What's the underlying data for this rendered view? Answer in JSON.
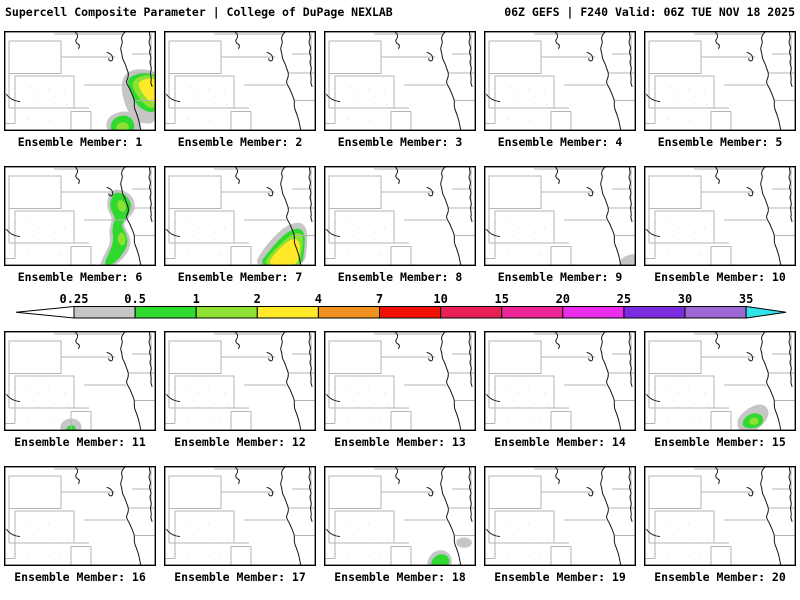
{
  "header": {
    "left": "Supercell Composite Parameter | College of DuPage NEXLAB",
    "right": "06Z GEFS | F240 Valid: 06Z TUE NOV 18 2025"
  },
  "chart_data": {
    "type": "heatmap",
    "title": "Supercell Composite Parameter",
    "source": "College of DuPage NEXLAB",
    "model": "GEFS",
    "run": "06Z",
    "forecast_hour": "F240",
    "valid": "06Z TUE NOV 18 2025",
    "region": "Central Plains / Upper Midwest (NE, IA, SD, MN, KS, MO, CO, WY)",
    "levels": [
      0.25,
      0.5,
      1,
      2,
      4,
      7,
      10,
      15,
      20,
      25,
      30,
      35
    ],
    "colorbar": {
      "tick_labels": [
        "0.25",
        "0.5",
        "1",
        "2",
        "4",
        "7",
        "10",
        "15",
        "20",
        "25",
        "30",
        "35"
      ],
      "segment_colors": [
        "#c6c6c6",
        "#2fd92f",
        "#8ee032",
        "#ffe929",
        "#f0921f",
        "#f00f05",
        "#e92055",
        "#ed2596",
        "#eb2ceb",
        "#7b2cdf",
        "#9d67d4"
      ],
      "below_min_color": "#ffffff",
      "above_max_color": "#2fe3e9"
    },
    "level_fill": {
      "0.25": "#c6c6c6",
      "0.5": "#2fd92f",
      "1": "#8ee032",
      "2": "#ffe929"
    },
    "panels": [
      {
        "member": 1,
        "caption": "Ensemble Member: 1",
        "max_band": "2-4",
        "blobs": [
          {
            "level": "0.25",
            "points": [
              [
                121,
                44
              ],
              [
                132,
                39
              ],
              [
                144,
                40
              ],
              [
                152,
                42
              ],
              [
                152,
                90
              ],
              [
                142,
                92
              ],
              [
                130,
                88
              ],
              [
                123,
                76
              ],
              [
                118,
                58
              ]
            ]
          },
          {
            "level": "0.5",
            "points": [
              [
                126,
                47
              ],
              [
                137,
                43
              ],
              [
                147,
                44
              ],
              [
                152,
                46
              ],
              [
                152,
                80
              ],
              [
                144,
                80
              ],
              [
                134,
                74
              ],
              [
                128,
                62
              ],
              [
                125,
                52
              ]
            ]
          },
          {
            "level": "1",
            "points": [
              [
                131,
                49
              ],
              [
                141,
                45
              ],
              [
                150,
                46
              ],
              [
                152,
                48
              ],
              [
                152,
                76
              ],
              [
                145,
                76
              ],
              [
                137,
                68
              ],
              [
                129,
                56
              ]
            ]
          },
          {
            "level": "2",
            "points": [
              [
                136,
                51
              ],
              [
                146,
                48
              ],
              [
                152,
                50
              ],
              [
                152,
                70
              ],
              [
                145,
                69
              ],
              [
                139,
                61
              ],
              [
                136,
                55
              ]
            ]
          },
          {
            "level": "0.25",
            "points": [
              [
                104,
                87
              ],
              [
                118,
                81
              ],
              [
                131,
                83
              ],
              [
                136,
                90
              ],
              [
                135,
                101
              ],
              [
                103,
                101
              ]
            ]
          },
          {
            "level": "0.5",
            "points": [
              [
                109,
                89
              ],
              [
                119,
                85
              ],
              [
                128,
                88
              ],
              [
                130,
                101
              ],
              [
                107,
                101
              ]
            ]
          },
          {
            "level": "1",
            "points": [
              [
                114,
                93
              ],
              [
                123,
                92
              ],
              [
                124,
                100
              ],
              [
                113,
                100
              ]
            ]
          }
        ]
      },
      {
        "member": 2,
        "caption": "Ensemble Member: 2",
        "max_band": "<0.25",
        "blobs": []
      },
      {
        "member": 3,
        "caption": "Ensemble Member: 3",
        "max_band": "<0.25",
        "blobs": []
      },
      {
        "member": 4,
        "caption": "Ensemble Member: 4",
        "max_band": "<0.25",
        "blobs": []
      },
      {
        "member": 5,
        "caption": "Ensemble Member: 5",
        "max_band": "<0.25",
        "blobs": []
      },
      {
        "member": 6,
        "caption": "Ensemble Member: 6",
        "max_band": "1-2",
        "blobs": [
          {
            "level": "0.25",
            "points": [
              [
                110,
                24
              ],
              [
                121,
                26
              ],
              [
                129,
                33
              ],
              [
                130,
                44
              ],
              [
                123,
                52
              ],
              [
                118,
                58
              ],
              [
                122,
                66
              ],
              [
                126,
                74
              ],
              [
                124,
                84
              ],
              [
                116,
                94
              ],
              [
                106,
                101
              ],
              [
                96,
                101
              ],
              [
                102,
                88
              ],
              [
                108,
                76
              ],
              [
                106,
                64
              ],
              [
                110,
                52
              ],
              [
                104,
                42
              ],
              [
                105,
                31
              ]
            ]
          },
          {
            "level": "0.5",
            "points": [
              [
                112,
                27
              ],
              [
                121,
                30
              ],
              [
                126,
                37
              ],
              [
                125,
                46
              ],
              [
                119,
                54
              ],
              [
                116,
                60
              ],
              [
                121,
                68
              ],
              [
                123,
                78
              ],
              [
                116,
                90
              ],
              [
                107,
                98
              ],
              [
                101,
                98
              ],
              [
                107,
                86
              ],
              [
                111,
                74
              ],
              [
                109,
                62
              ],
              [
                113,
                52
              ],
              [
                107,
                42
              ],
              [
                108,
                33
              ]
            ]
          },
          {
            "level": "1",
            "points": [
              [
                115,
                34
              ],
              [
                121,
                38
              ],
              [
                120,
                46
              ],
              [
                114,
                42
              ]
            ]
          },
          {
            "level": "1",
            "points": [
              [
                117,
                66
              ],
              [
                121,
                72
              ],
              [
                119,
                80
              ],
              [
                114,
                74
              ]
            ]
          }
        ]
      },
      {
        "member": 7,
        "caption": "Ensemble Member: 7",
        "max_band": "2-4",
        "blobs": [
          {
            "level": "0.25",
            "points": [
              [
                90,
                101
              ],
              [
                100,
                84
              ],
              [
                112,
                70
              ],
              [
                124,
                60
              ],
              [
                136,
                57
              ],
              [
                142,
                63
              ],
              [
                142,
                80
              ],
              [
                139,
                101
              ]
            ]
          },
          {
            "level": "0.5",
            "points": [
              [
                95,
                100
              ],
              [
                106,
                86
              ],
              [
                116,
                74
              ],
              [
                127,
                65
              ],
              [
                136,
                63
              ],
              [
                140,
                70
              ],
              [
                139,
                84
              ],
              [
                137,
                100
              ]
            ]
          },
          {
            "level": "1",
            "points": [
              [
                99,
                100
              ],
              [
                109,
                87
              ],
              [
                119,
                77
              ],
              [
                129,
                69
              ],
              [
                137,
                68
              ],
              [
                138,
                76
              ],
              [
                136,
                88
              ],
              [
                134,
                100
              ]
            ]
          },
          {
            "level": "2",
            "points": [
              [
                104,
                99
              ],
              [
                112,
                88
              ],
              [
                122,
                78
              ],
              [
                131,
                73
              ],
              [
                135,
                78
              ],
              [
                134,
                90
              ],
              [
                131,
                99
              ]
            ]
          }
        ]
      },
      {
        "member": 8,
        "caption": "Ensemble Member: 8",
        "max_band": "<0.25",
        "blobs": []
      },
      {
        "member": 9,
        "caption": "Ensemble Member: 9",
        "max_band": "0.25-0.5",
        "blobs": [
          {
            "level": "0.25",
            "points": [
              [
                138,
                93
              ],
              [
                145,
                90
              ],
              [
                152,
                89
              ],
              [
                152,
                101
              ],
              [
                136,
                101
              ]
            ]
          }
        ]
      },
      {
        "member": 10,
        "caption": "Ensemble Member: 10",
        "max_band": "<0.25",
        "blobs": []
      },
      {
        "member": 11,
        "caption": "Ensemble Member: 11",
        "max_band": "0.5-1",
        "blobs": [
          {
            "level": "0.25",
            "points": [
              [
                58,
                92
              ],
              [
                66,
                88
              ],
              [
                74,
                90
              ],
              [
                77,
                96
              ],
              [
                74,
                101
              ],
              [
                57,
                101
              ]
            ]
          },
          {
            "level": "0.5",
            "points": [
              [
                64,
                96
              ],
              [
                70,
                95
              ],
              [
                71,
                101
              ],
              [
                63,
                101
              ]
            ]
          }
        ]
      },
      {
        "member": 12,
        "caption": "Ensemble Member: 12",
        "max_band": "<0.25",
        "blobs": []
      },
      {
        "member": 13,
        "caption": "Ensemble Member: 13",
        "max_band": "<0.25",
        "blobs": []
      },
      {
        "member": 14,
        "caption": "Ensemble Member: 14",
        "max_band": "<0.25",
        "blobs": []
      },
      {
        "member": 15,
        "caption": "Ensemble Member: 15",
        "max_band": "1-2",
        "blobs": [
          {
            "level": "0.25",
            "points": [
              [
                94,
                88
              ],
              [
                104,
                79
              ],
              [
                114,
                74
              ],
              [
                122,
                76
              ],
              [
                124,
                84
              ],
              [
                118,
                93
              ],
              [
                110,
                99
              ],
              [
                95,
                99
              ]
            ]
          },
          {
            "level": "0.5",
            "points": [
              [
                100,
                89
              ],
              [
                108,
                83
              ],
              [
                116,
                84
              ],
              [
                119,
                90
              ],
              [
                113,
                96
              ],
              [
                100,
                96
              ]
            ]
          },
          {
            "level": "1",
            "points": [
              [
                106,
                89
              ],
              [
                112,
                87
              ],
              [
                114,
                92
              ],
              [
                107,
                93
              ]
            ]
          }
        ]
      },
      {
        "member": 16,
        "caption": "Ensemble Member: 16",
        "max_band": "<0.25",
        "blobs": []
      },
      {
        "member": 17,
        "caption": "Ensemble Member: 17",
        "max_band": "<0.25",
        "blobs": []
      },
      {
        "member": 18,
        "caption": "Ensemble Member: 18",
        "max_band": "0.5-1",
        "blobs": [
          {
            "level": "0.25",
            "points": [
              [
                133,
                74
              ],
              [
                142,
                72
              ],
              [
                148,
                76
              ],
              [
                144,
                81
              ],
              [
                134,
                80
              ]
            ]
          },
          {
            "level": "0.25",
            "points": [
              [
                105,
                93
              ],
              [
                111,
                86
              ],
              [
                120,
                85
              ],
              [
                126,
                90
              ],
              [
                127,
                97
              ],
              [
                124,
                101
              ],
              [
                104,
                101
              ]
            ]
          },
          {
            "level": "0.5",
            "points": [
              [
                109,
                94
              ],
              [
                115,
                89
              ],
              [
                122,
                90
              ],
              [
                125,
                95
              ],
              [
                122,
                100
              ],
              [
                108,
                100
              ]
            ]
          }
        ]
      },
      {
        "member": 19,
        "caption": "Ensemble Member: 19",
        "max_band": "<0.25",
        "blobs": []
      },
      {
        "member": 20,
        "caption": "Ensemble Member: 20",
        "max_band": "<0.25",
        "blobs": []
      }
    ]
  }
}
